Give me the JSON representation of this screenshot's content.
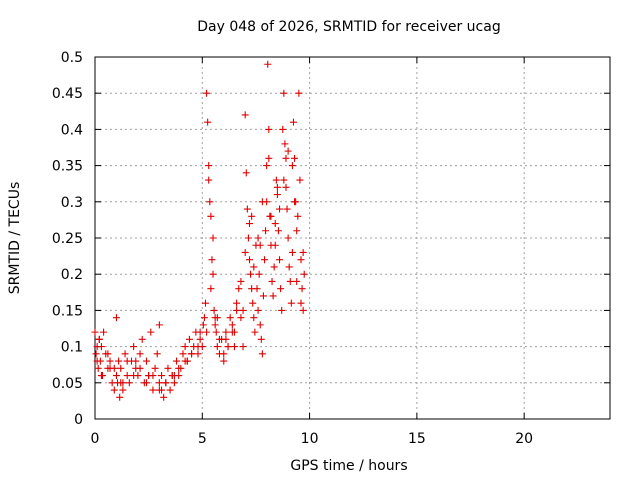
{
  "chart_data": {
    "type": "scatter",
    "title": "Day 048 of 2026, SRMTID for receiver ucag",
    "xlabel": "GPS time / hours",
    "ylabel": "SRMTID / TECUs",
    "xlim": [
      0,
      24
    ],
    "ylim": [
      0,
      0.5
    ],
    "x_ticks": [
      0,
      5,
      10,
      15,
      20
    ],
    "x_tick_labels": [
      "0",
      "5",
      "10",
      "15",
      "20"
    ],
    "y_ticks": [
      0,
      0.05,
      0.1,
      0.15,
      0.2,
      0.25,
      0.3,
      0.35,
      0.4,
      0.45,
      0.5
    ],
    "y_tick_labels": [
      "0",
      "0.05",
      "0.1",
      "0.15",
      "0.2",
      "0.25",
      "0.3",
      "0.35",
      "0.4",
      "0.45",
      "0.5"
    ],
    "grid": true,
    "marker": "+",
    "series": [
      {
        "name": "SRMTID",
        "color": "#e00000",
        "x": [
          0.0,
          0.05,
          0.1,
          0.15,
          0.2,
          0.25,
          0.3,
          0.35,
          0.4,
          0.5,
          0.6,
          0.7,
          0.8,
          0.9,
          1.0,
          1.0,
          1.05,
          1.1,
          1.15,
          1.2,
          1.3,
          1.4,
          1.5,
          1.6,
          1.7,
          1.8,
          1.9,
          2.0,
          2.1,
          2.2,
          2.3,
          2.4,
          2.5,
          2.6,
          2.7,
          2.8,
          2.9,
          3.0,
          3.0,
          3.1,
          3.2,
          3.3,
          3.4,
          3.5,
          3.6,
          3.7,
          3.8,
          3.9,
          4.0,
          4.1,
          4.2,
          4.3,
          4.4,
          4.5,
          4.6,
          4.7,
          4.8,
          4.9,
          5.0,
          5.05,
          5.1,
          5.15,
          5.2,
          5.25,
          5.3,
          5.35,
          5.4,
          5.45,
          5.5,
          5.55,
          5.6,
          5.65,
          5.7,
          5.8,
          5.9,
          6.0,
          6.1,
          6.2,
          6.3,
          6.4,
          6.5,
          6.6,
          6.7,
          6.8,
          6.9,
          7.0,
          7.05,
          7.1,
          7.15,
          7.2,
          7.25,
          7.3,
          7.35,
          7.4,
          7.45,
          7.5,
          7.55,
          7.6,
          7.65,
          7.7,
          7.75,
          7.8,
          7.85,
          7.9,
          7.95,
          8.0,
          8.05,
          8.1,
          8.15,
          8.2,
          8.25,
          8.3,
          8.35,
          8.4,
          8.45,
          8.5,
          8.55,
          8.6,
          8.65,
          8.7,
          8.75,
          8.8,
          8.85,
          8.9,
          8.95,
          9.0,
          9.05,
          9.1,
          9.15,
          9.2,
          9.25,
          9.3,
          9.35,
          9.4,
          9.45,
          9.5,
          9.55,
          9.6,
          9.65,
          9.7,
          9.75,
          0.1,
          0.3,
          0.6,
          0.9,
          1.2,
          1.5,
          1.8,
          2.1,
          2.4,
          2.7,
          3.0,
          3.3,
          3.6,
          3.9,
          4.2,
          4.5,
          4.8,
          5.2,
          5.4,
          5.6,
          5.8,
          6.0,
          6.2,
          6.4,
          6.6,
          6.8,
          7.0,
          7.2,
          7.4,
          7.6,
          7.8,
          8.0,
          8.2,
          8.4,
          8.6,
          8.8,
          9.0,
          9.2,
          9.4,
          9.6,
          0.2,
          0.7,
          1.3,
          1.9,
          2.5,
          3.1,
          3.7,
          4.3,
          4.9,
          5.3,
          5.5,
          5.7,
          6.1,
          6.5,
          6.9,
          7.3,
          7.7,
          8.1,
          8.5,
          8.9,
          9.3,
          9.7
        ],
        "y": [
          0.12,
          0.09,
          0.1,
          0.07,
          0.11,
          0.08,
          0.1,
          0.06,
          0.12,
          0.09,
          0.07,
          0.08,
          0.05,
          0.04,
          0.06,
          0.14,
          0.05,
          0.08,
          0.03,
          0.07,
          0.04,
          0.09,
          0.06,
          0.05,
          0.08,
          0.1,
          0.07,
          0.06,
          0.09,
          0.11,
          0.05,
          0.08,
          0.06,
          0.12,
          0.04,
          0.07,
          0.09,
          0.05,
          0.13,
          0.06,
          0.03,
          0.05,
          0.07,
          0.04,
          0.06,
          0.05,
          0.08,
          0.06,
          0.07,
          0.09,
          0.1,
          0.08,
          0.11,
          0.09,
          0.1,
          0.12,
          0.09,
          0.11,
          0.1,
          0.13,
          0.14,
          0.16,
          0.45,
          0.41,
          0.35,
          0.3,
          0.28,
          0.22,
          0.2,
          0.15,
          0.14,
          0.12,
          0.1,
          0.09,
          0.11,
          0.08,
          0.12,
          0.1,
          0.14,
          0.12,
          0.1,
          0.16,
          0.18,
          0.14,
          0.1,
          0.42,
          0.34,
          0.29,
          0.25,
          0.22,
          0.2,
          0.18,
          0.16,
          0.14,
          0.12,
          0.24,
          0.18,
          0.15,
          0.2,
          0.13,
          0.11,
          0.09,
          0.17,
          0.22,
          0.26,
          0.3,
          0.49,
          0.36,
          0.28,
          0.24,
          0.19,
          0.17,
          0.21,
          0.27,
          0.33,
          0.31,
          0.26,
          0.22,
          0.18,
          0.15,
          0.4,
          0.45,
          0.38,
          0.32,
          0.29,
          0.25,
          0.21,
          0.19,
          0.16,
          0.35,
          0.41,
          0.36,
          0.3,
          0.26,
          0.28,
          0.45,
          0.33,
          0.22,
          0.18,
          0.15,
          0.2,
          0.08,
          0.06,
          0.09,
          0.07,
          0.05,
          0.08,
          0.06,
          0.07,
          0.05,
          0.06,
          0.04,
          0.05,
          0.06,
          0.07,
          0.08,
          0.09,
          0.1,
          0.12,
          0.18,
          0.13,
          0.11,
          0.09,
          0.1,
          0.13,
          0.15,
          0.19,
          0.23,
          0.27,
          0.21,
          0.25,
          0.3,
          0.35,
          0.28,
          0.24,
          0.29,
          0.33,
          0.37,
          0.23,
          0.19,
          0.16,
          0.11,
          0.07,
          0.05,
          0.08,
          0.06,
          0.04,
          0.06,
          0.08,
          0.12,
          0.33,
          0.25,
          0.14,
          0.11,
          0.12,
          0.15,
          0.28,
          0.24,
          0.4,
          0.32,
          0.36,
          0.3,
          0.23
        ]
      }
    ]
  }
}
